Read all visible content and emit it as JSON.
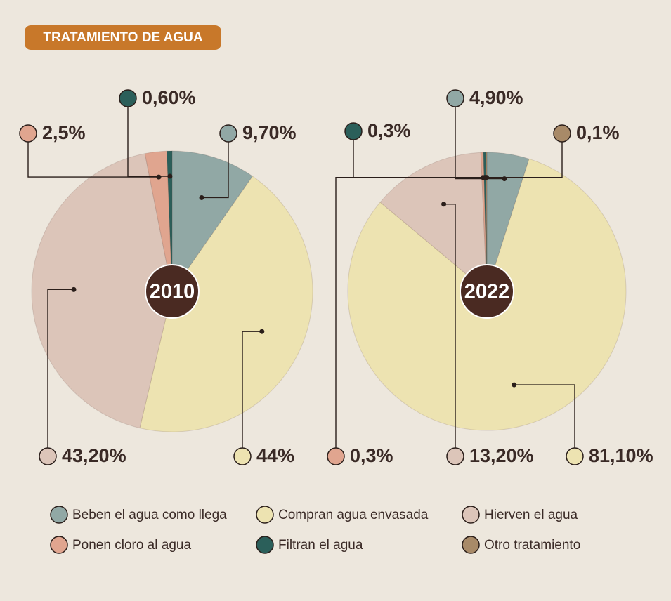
{
  "title": "TRATAMIENTO DE AGUA",
  "legend": [
    {
      "name": "Beben el agua como llega",
      "color": "#91a8a5"
    },
    {
      "name": "Compran agua envasada",
      "color": "#ede3b1"
    },
    {
      "name": "Hierven el agua",
      "color": "#dcc5b9"
    },
    {
      "name": "Ponen cloro al agua",
      "color": "#e0a58f"
    },
    {
      "name": "Filtran el agua",
      "color": "#2b5f5a"
    },
    {
      "name": "Otro tratamiento",
      "color": "#a88a68"
    }
  ],
  "chart_data": [
    {
      "type": "pie",
      "title": "2010",
      "values": [
        9.7,
        44,
        43.2,
        2.5,
        0.6,
        null
      ],
      "value_labels": [
        "9,70%",
        "44%",
        "43,20%",
        "2,5%",
        "0,60%",
        null
      ]
    },
    {
      "type": "pie",
      "title": "2022",
      "values": [
        4.9,
        81.1,
        13.2,
        0.3,
        0.3,
        0.1
      ],
      "value_labels": [
        "4,90%",
        "81,10%",
        "13,20%",
        "0,3%",
        "0,3%",
        "0,1%"
      ]
    }
  ]
}
